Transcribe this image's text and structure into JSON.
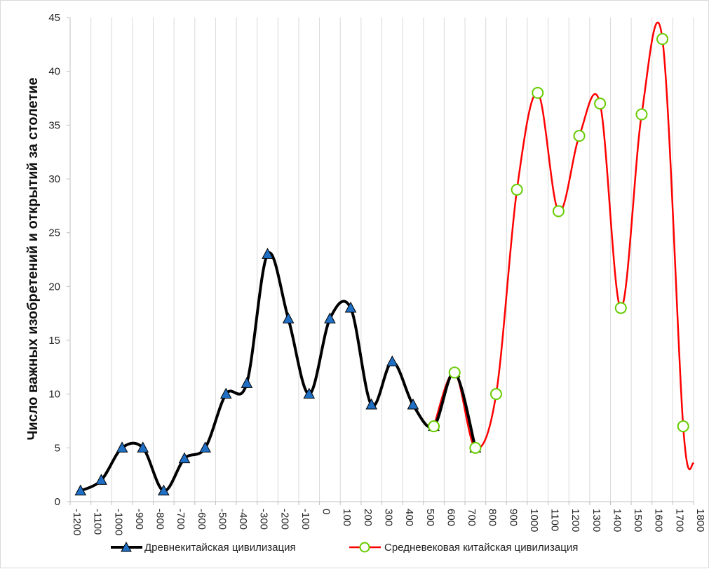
{
  "chart_data": {
    "type": "line",
    "title": "",
    "xlabel": "",
    "ylabel": "Число важных изобретений и открытий за  столетие",
    "xlim": [
      -1200,
      1800
    ],
    "ylim": [
      0,
      45
    ],
    "x_ticks": [
      -1200,
      -1100,
      -1000,
      -900,
      -800,
      -700,
      -600,
      -500,
      -400,
      -300,
      -200,
      -100,
      0,
      100,
      200,
      300,
      400,
      500,
      600,
      700,
      800,
      900,
      1000,
      1100,
      1200,
      1300,
      1400,
      1500,
      1600,
      1700,
      1800
    ],
    "x_tick_labels": [
      "-1200",
      "-1100",
      "-1000",
      "-900",
      "-800",
      "-700",
      "-600",
      "-500",
      "-400",
      "-300",
      "-200",
      "-100",
      "0",
      "100",
      "200",
      "300",
      "400",
      "500",
      "600",
      "700",
      "800",
      "900",
      "1000",
      "1100",
      "1200",
      "1300",
      "1400",
      "1500",
      "1600",
      "1700",
      "1800"
    ],
    "y_ticks": [
      0,
      5,
      10,
      15,
      20,
      25,
      30,
      35,
      40,
      45
    ],
    "y_tick_labels": [
      "0",
      "5",
      "10",
      "15",
      "20",
      "25",
      "30",
      "35",
      "40",
      "45"
    ],
    "grid": "vertical",
    "legend_position": "bottom",
    "series": [
      {
        "name": "Древнекитайская цивилизация",
        "color": "#000000",
        "marker": "triangle",
        "marker_color": "#1f6fc5",
        "points": [
          [
            -1150,
            1
          ],
          [
            -1050,
            2
          ],
          [
            -950,
            5
          ],
          [
            -850,
            5
          ],
          [
            -750,
            1
          ],
          [
            -650,
            4
          ],
          [
            -550,
            5
          ],
          [
            -450,
            10
          ],
          [
            -350,
            11
          ],
          [
            -250,
            23
          ],
          [
            -150,
            17
          ],
          [
            -50,
            10
          ],
          [
            50,
            17
          ],
          [
            150,
            18
          ],
          [
            250,
            9
          ],
          [
            350,
            13
          ],
          [
            450,
            9
          ],
          [
            550,
            7
          ],
          [
            650,
            12
          ],
          [
            750,
            5
          ]
        ]
      },
      {
        "name": "Средневековая китайская цивилизация",
        "color": "#ff0000",
        "marker": "circle",
        "marker_color": "#66cc00",
        "points": [
          [
            550,
            7
          ],
          [
            650,
            12
          ],
          [
            750,
            5
          ],
          [
            850,
            10
          ],
          [
            950,
            29
          ],
          [
            1050,
            38
          ],
          [
            1150,
            27
          ],
          [
            1250,
            34
          ],
          [
            1350,
            37
          ],
          [
            1450,
            18
          ],
          [
            1550,
            36
          ],
          [
            1650,
            43
          ],
          [
            1750,
            7
          ],
          [
            1800,
            3.5
          ]
        ],
        "marker_count": 13
      }
    ]
  }
}
